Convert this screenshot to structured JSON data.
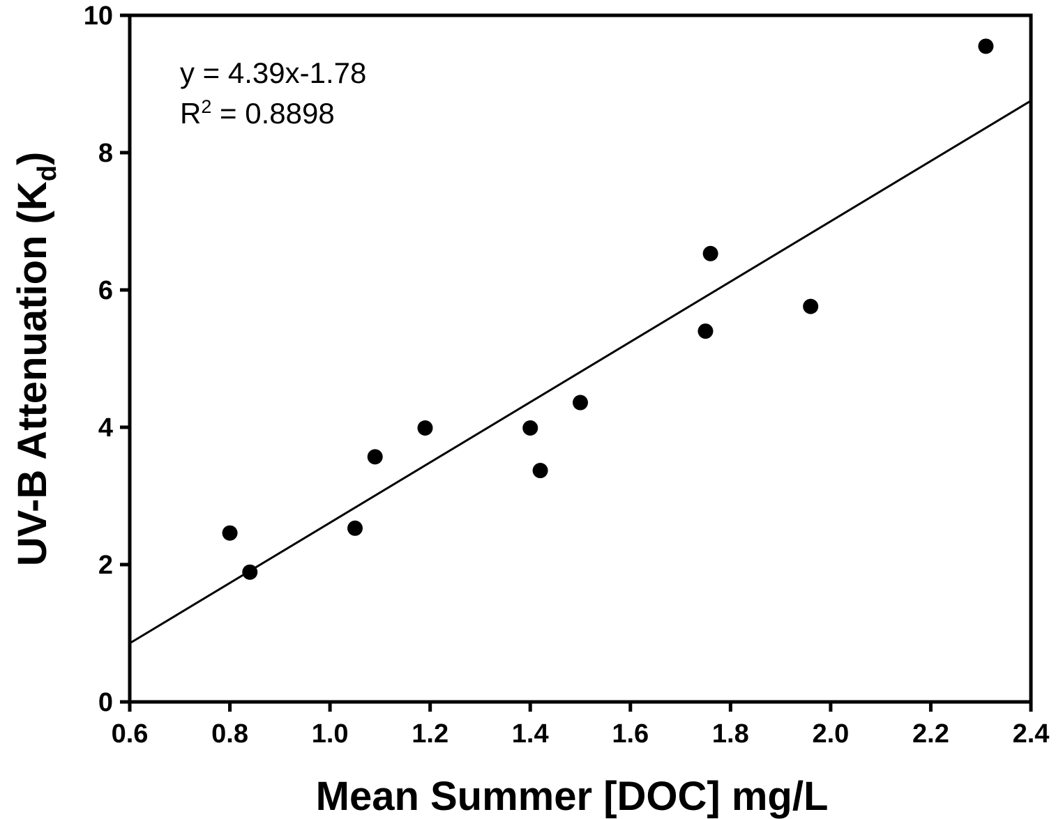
{
  "chart_data": {
    "type": "scatter",
    "xlabel": "Mean Summer [DOC] mg/L",
    "ylabel": "UV-B Attenuation (K",
    "ylabel_subscript": "d",
    "ylabel_close": ")",
    "xlim": [
      0.6,
      2.4
    ],
    "ylim": [
      0,
      10
    ],
    "xticks": [
      "0.6",
      "0.8",
      "1.0",
      "1.2",
      "1.4",
      "1.6",
      "1.8",
      "2.0",
      "2.2",
      "2.4"
    ],
    "yticks": [
      "0",
      "2",
      "4",
      "6",
      "8",
      "10"
    ],
    "grid": false,
    "points": [
      {
        "x": 0.8,
        "y": 2.46
      },
      {
        "x": 0.84,
        "y": 1.89
      },
      {
        "x": 1.05,
        "y": 2.53
      },
      {
        "x": 1.09,
        "y": 3.57
      },
      {
        "x": 1.19,
        "y": 3.99
      },
      {
        "x": 1.4,
        "y": 3.99
      },
      {
        "x": 1.42,
        "y": 3.37
      },
      {
        "x": 1.5,
        "y": 4.36
      },
      {
        "x": 1.75,
        "y": 5.4
      },
      {
        "x": 1.76,
        "y": 6.53
      },
      {
        "x": 1.96,
        "y": 5.76
      },
      {
        "x": 2.31,
        "y": 9.55
      }
    ],
    "trendline": {
      "slope": 4.39,
      "intercept": -1.78
    },
    "annotation": {
      "equation": "y = 4.39x-1.78",
      "r2_prefix": "R",
      "r2_sup": "2",
      "r2_value": " = 0.8898"
    }
  }
}
